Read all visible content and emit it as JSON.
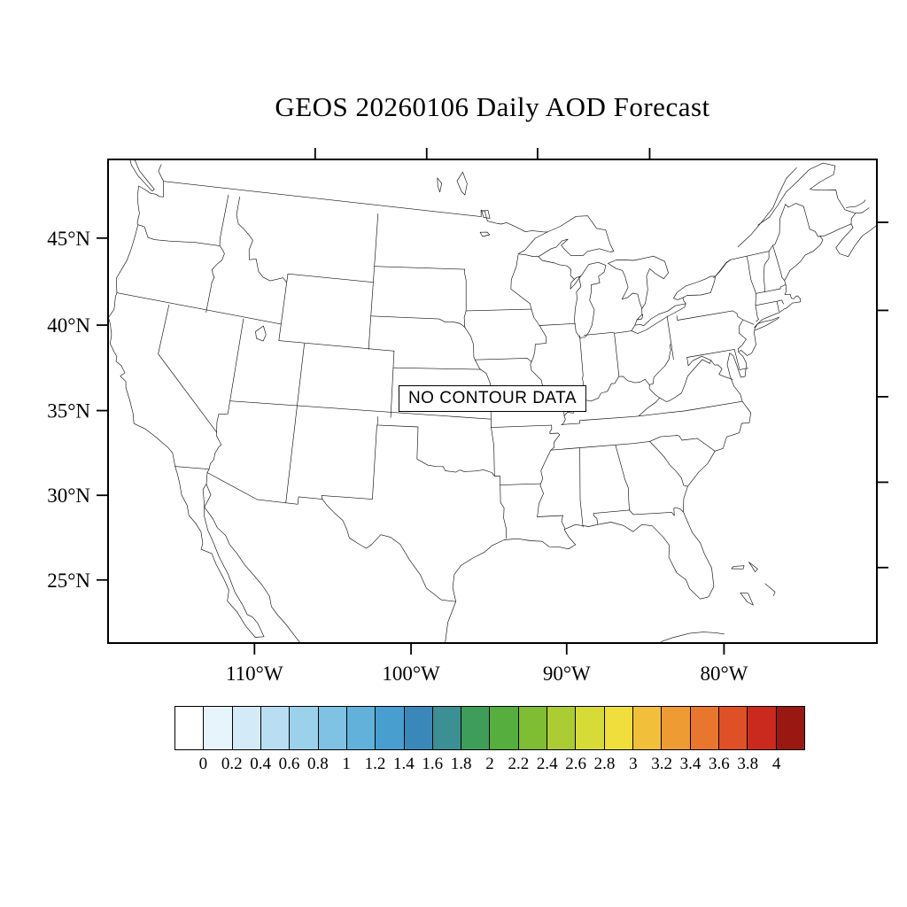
{
  "title": "GEOS 20260106 Daily AOD Forecast",
  "map": {
    "no_data_label": "NO CONTOUR DATA",
    "lat_ticks": [
      {
        "label": "45°N",
        "deg": 45
      },
      {
        "label": "40°N",
        "deg": 40
      },
      {
        "label": "35°N",
        "deg": 35
      },
      {
        "label": "30°N",
        "deg": 30
      },
      {
        "label": "25°N",
        "deg": 25
      }
    ],
    "lon_ticks": [
      {
        "label": "110°W",
        "deg": -110
      },
      {
        "label": "100°W",
        "deg": -100
      },
      {
        "label": "90°W",
        "deg": -90
      },
      {
        "label": "80°W",
        "deg": -80
      }
    ]
  },
  "colorbar": {
    "labels": [
      "0",
      "0.2",
      "0.4",
      "0.6",
      "0.8",
      "1",
      "1.2",
      "1.4",
      "1.6",
      "1.8",
      "2",
      "2.2",
      "2.4",
      "2.6",
      "2.8",
      "3",
      "3.2",
      "3.4",
      "3.6",
      "3.8",
      "4"
    ],
    "colors": [
      "#FFFFFF",
      "#E8F4FB",
      "#D3EAF7",
      "#B9DEF2",
      "#9CD1EB",
      "#7FC2E3",
      "#61B1DA",
      "#479ECF",
      "#3A87B9",
      "#3C8F93",
      "#3F9D5A",
      "#55AE3D",
      "#7EBD34",
      "#ABCC32",
      "#D7DB37",
      "#F0DE3D",
      "#F1BF3A",
      "#EE9B33",
      "#E8762C",
      "#DF5026",
      "#CA2A1E",
      "#991812"
    ]
  },
  "chart_data": {
    "type": "heatmap",
    "title": "GEOS 20260106 Daily AOD Forecast",
    "status": "NO CONTOUR DATA",
    "colorbar_levels": [
      0,
      0.2,
      0.4,
      0.6,
      0.8,
      1,
      1.2,
      1.4,
      1.6,
      1.8,
      2,
      2.2,
      2.4,
      2.6,
      2.8,
      3,
      3.2,
      3.4,
      3.6,
      3.8,
      4
    ],
    "x_tick_labels": [
      "110°W",
      "100°W",
      "90°W",
      "80°W"
    ],
    "y_tick_labels": [
      "45°N",
      "40°N",
      "35°N",
      "30°N",
      "25°N"
    ]
  }
}
